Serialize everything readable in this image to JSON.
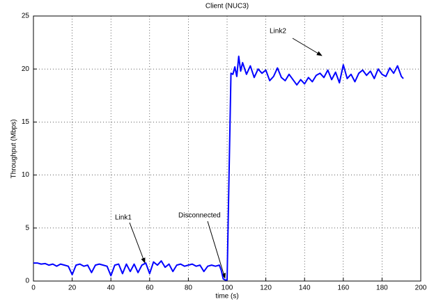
{
  "chart_data": {
    "type": "line",
    "title": "Client (NUC3)",
    "xlabel": "time (s)",
    "ylabel": "Throughput (Mbps)",
    "x": [
      0,
      2,
      4,
      6,
      8,
      10,
      12,
      14,
      16,
      18,
      20,
      22,
      24,
      26,
      28,
      30,
      32,
      34,
      36,
      38,
      40,
      42,
      44,
      46,
      48,
      50,
      52,
      54,
      56,
      58,
      60,
      62,
      64,
      66,
      68,
      70,
      72,
      74,
      76,
      78,
      80,
      82,
      84,
      86,
      88,
      90,
      92,
      94,
      96,
      97,
      98,
      99,
      100,
      101,
      102,
      103,
      104,
      105,
      106,
      107,
      108,
      110,
      112,
      114,
      116,
      118,
      120,
      122,
      124,
      126,
      128,
      130,
      132,
      134,
      136,
      138,
      140,
      142,
      144,
      146,
      148,
      150,
      152,
      154,
      156,
      158,
      160,
      162,
      164,
      166,
      168,
      170,
      172,
      174,
      176,
      178,
      180,
      182,
      184,
      186,
      188,
      190,
      191
    ],
    "series": [
      {
        "color": "#0000ff",
        "values": [
          1.7,
          1.7,
          1.6,
          1.65,
          1.5,
          1.6,
          1.4,
          1.6,
          1.5,
          1.4,
          0.6,
          1.5,
          1.6,
          1.4,
          1.5,
          0.8,
          1.5,
          1.6,
          1.5,
          1.4,
          0.5,
          1.5,
          1.6,
          0.7,
          1.6,
          0.9,
          1.6,
          0.8,
          1.5,
          1.7,
          0.7,
          1.8,
          1.5,
          1.9,
          1.3,
          1.6,
          0.9,
          1.5,
          1.6,
          1.4,
          1.5,
          1.6,
          1.4,
          1.5,
          0.9,
          1.4,
          1.5,
          1.4,
          1.5,
          1.0,
          0.2,
          0.1,
          0.1,
          10,
          19.6,
          19.5,
          20.2,
          19.3,
          21.2,
          19.8,
          20.6,
          19.5,
          20.3,
          19.2,
          20.0,
          19.6,
          19.9,
          18.9,
          19.3,
          20.1,
          19.2,
          18.9,
          19.5,
          19.0,
          18.5,
          19.0,
          18.6,
          19.2,
          18.8,
          19.4,
          19.6,
          19.2,
          19.9,
          19.0,
          19.7,
          18.7,
          20.4,
          19.1,
          19.5,
          18.8,
          19.6,
          19.9,
          19.4,
          19.8,
          19.1,
          20.0,
          19.5,
          19.3,
          20.1,
          19.6,
          20.3,
          19.3,
          19.1
        ]
      }
    ],
    "xlim": [
      0,
      200
    ],
    "ylim": [
      0,
      25
    ],
    "xticks": [
      0,
      20,
      40,
      60,
      80,
      100,
      120,
      140,
      160,
      180,
      200
    ],
    "yticks": [
      0,
      5,
      10,
      15,
      20,
      25
    ],
    "grid": true,
    "annotations": [
      "Link1",
      "Disconnected",
      "Link2"
    ]
  }
}
